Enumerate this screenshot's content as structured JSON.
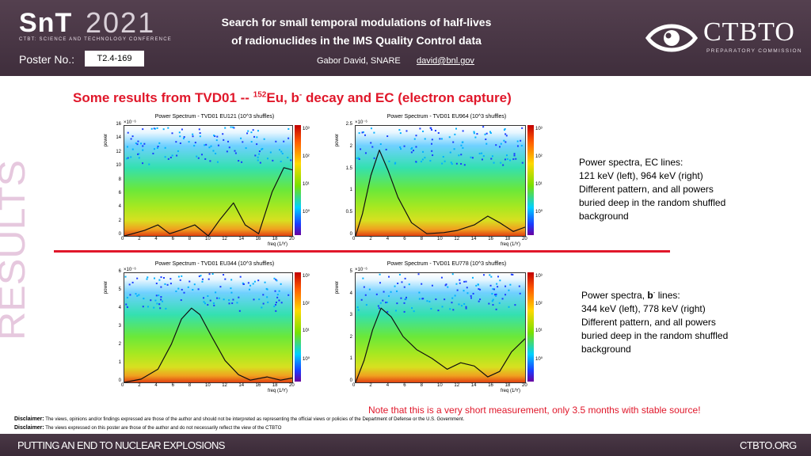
{
  "header": {
    "brand": "SnT",
    "year": "2021",
    "brand_sub": "CTBT: SCIENCE AND TECHNOLOGY CONFERENCE",
    "poster_label": "Poster No.:",
    "poster_number": "T2.4-169",
    "title_line1": "Search for small temporal modulations of half-lives",
    "title_line2": "of radionuclides in the IMS Quality Control data",
    "author": "Gabor David, SNARE",
    "email": "david@bnl.gov",
    "org_name": "CTBTO",
    "org_sub": "PREPARATORY COMMISSION"
  },
  "side_label": "RESULTS",
  "section": {
    "title_prefix": "Some results from TVD01 -- ",
    "isotope_mass": "152",
    "isotope": "Eu, b",
    "minus": "-",
    "title_suffix": " decay and EC (electron capture)"
  },
  "plots": [
    {
      "title": "Power Spectrum - TVD01 EU121 (10^3 shuffles)",
      "ylabel": "power",
      "xlabel": "freq (1/Y)",
      "exp": "×10⁻⁶",
      "yticks": [
        "0",
        "2",
        "4",
        "6",
        "8",
        "10",
        "12",
        "14",
        "16"
      ],
      "xticks": [
        "0",
        "2",
        "4",
        "6",
        "8",
        "10",
        "12",
        "14",
        "16",
        "18",
        "20"
      ],
      "cticks": [
        "10³",
        "10²",
        "10¹",
        "10⁰"
      ]
    },
    {
      "title": "Power Spectrum - TVD01 EU964 (10^3 shuffles)",
      "ylabel": "power",
      "xlabel": "freq (1/Y)",
      "exp": "×10⁻⁶",
      "yticks": [
        "0",
        "0.5",
        "1",
        "1.5",
        "2",
        "2.5"
      ],
      "xticks": [
        "0",
        "2",
        "4",
        "6",
        "8",
        "10",
        "12",
        "14",
        "16",
        "18",
        "20"
      ],
      "cticks": [
        "10³",
        "10²",
        "10¹",
        "10⁰"
      ]
    },
    {
      "title": "Power Spectrum - TVD01 EU344 (10^3 shuffles)",
      "ylabel": "power",
      "xlabel": "freq (1/Y)",
      "exp": "×10⁻⁶",
      "yticks": [
        "0",
        "1",
        "2",
        "3",
        "4",
        "5",
        "6"
      ],
      "xticks": [
        "0",
        "2",
        "4",
        "6",
        "8",
        "10",
        "12",
        "14",
        "16",
        "18",
        "20"
      ],
      "cticks": [
        "10³",
        "10²",
        "10¹",
        "10⁰"
      ]
    },
    {
      "title": "Power Spectrum - TVD01 EU778 (10^3 shuffles)",
      "ylabel": "power",
      "xlabel": "freq (1/Y)",
      "exp": "×10⁻⁶",
      "yticks": [
        "0",
        "1",
        "2",
        "3",
        "4",
        "5"
      ],
      "xticks": [
        "0",
        "2",
        "4",
        "6",
        "8",
        "10",
        "12",
        "14",
        "16",
        "18",
        "20"
      ],
      "cticks": [
        "10³",
        "10²",
        "10¹",
        "10⁰"
      ]
    }
  ],
  "desc_top": {
    "line1": "Power spectra, EC lines:",
    "line2": "121 keV (left), 964 keV (right)",
    "line3": "Different pattern, and all powers",
    "line4": "buried deep in the random shuffled",
    "line5": "background"
  },
  "desc_bottom": {
    "line1_a": "Power spectra, ",
    "line1_b": "b",
    "line1_sup": "-",
    "line1_c": " lines:",
    "line2": "344 keV (left), 778 keV (right)",
    "line3": "Different pattern, and all powers",
    "line4": "buried deep in the random shuffled",
    "line5": "background"
  },
  "note": "Note that this is a very short measurement, only 3.5 months with stable source!",
  "disclaimer1_label": "Disclaimer:",
  "disclaimer1_text": " The views, opinions and/or findings expressed are those of the author and should not be interpreted as representing the official views or policies of the Department of Defense or the U.S. Government.",
  "disclaimer2_label": "Disclaimer:",
  "disclaimer2_text": " The views expressed on this poster are those of the author and do not necessarily reflect the view of the CTBTO",
  "footer": {
    "left": "PUTTING AN END TO NUCLEAR EXPLOSIONS",
    "right": "CTBTO.ORG"
  },
  "colors": {
    "accent_red": "#e0172a",
    "header_bg": "#4a3846",
    "side_label": "#e6c8de"
  }
}
